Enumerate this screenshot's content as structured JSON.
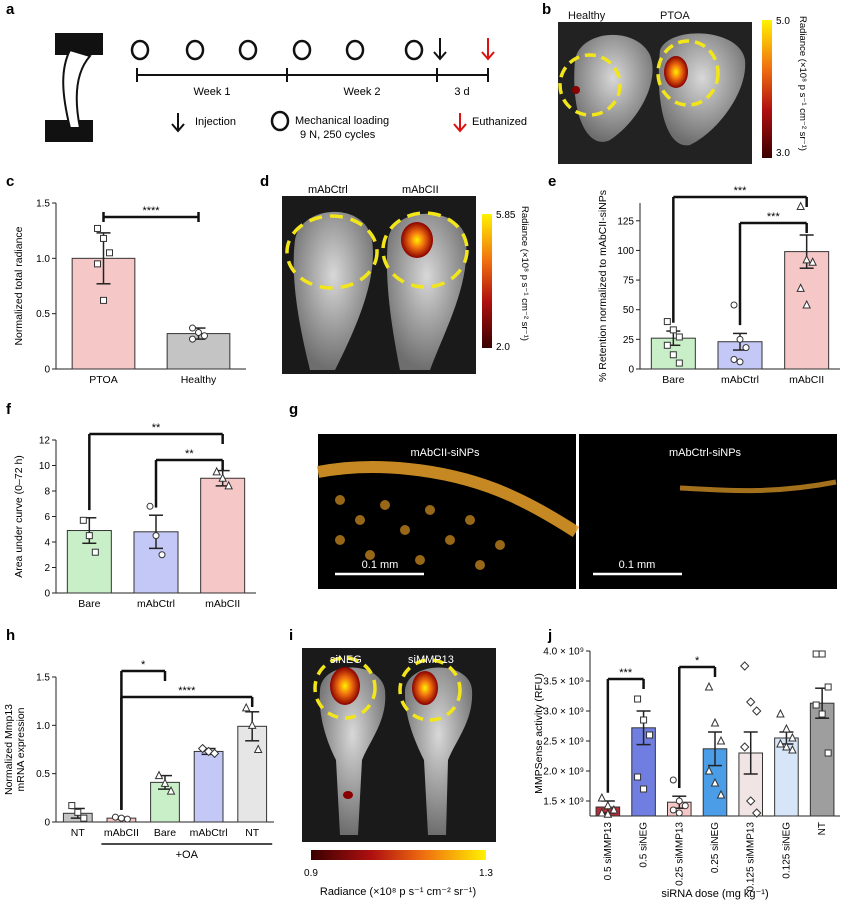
{
  "panels": {
    "a": {
      "label": "a",
      "week1": "Week 1",
      "week2": "Week 2",
      "days": "3 d",
      "legend_injection": "Injection",
      "legend_loading_1": "Mechanical loading",
      "legend_loading_2": "9 N, 250 cycles",
      "legend_euth": "Euthanized"
    },
    "b": {
      "label": "b",
      "left": "Healthy",
      "right": "PTOA",
      "cb_max": "5.0",
      "cb_min": "3.0",
      "cb_title": "Radiance (×10⁸ p s⁻¹ cm⁻² sr⁻¹)"
    },
    "d": {
      "label": "d",
      "left": "mAbCtrl",
      "right": "mAbCII",
      "cb_max": "5.85",
      "cb_min": "2.0",
      "cb_title": "Radiance (×10⁸ p s⁻¹ cm⁻² sr⁻¹)"
    },
    "g": {
      "label": "g",
      "left": "mAbCII-siNPs",
      "right": "mAbCtrl-siNPs",
      "scale": "0.1 mm"
    },
    "i": {
      "label": "i",
      "left": "siNEG",
      "right": "siMMP13",
      "cb_min": "0.9",
      "cb_max": "1.3",
      "cb_title": "Radiance (×10⁸ p s⁻¹ cm⁻² sr⁻¹)"
    },
    "h_group": "+OA"
  },
  "chart_data": [
    {
      "id": "c",
      "type": "bar",
      "label": "c",
      "categories": [
        "PTOA",
        "Healthy"
      ],
      "values": [
        1.0,
        0.32
      ],
      "errors": [
        0.23,
        0.05
      ],
      "colors": [
        "#f6c7c7",
        "#c4c4c4"
      ],
      "ylabel": "Normalized total radiance",
      "ylim": [
        0,
        1.5
      ],
      "yticks": [
        "0",
        "0.5",
        "1.0",
        "1.5"
      ],
      "points": [
        [
          1.27,
          1.18,
          1.05,
          0.95,
          0.62
        ],
        [
          0.37,
          0.33,
          0.3,
          0.27
        ]
      ],
      "sig": [
        {
          "from": 0,
          "to": 1,
          "text": "****"
        }
      ]
    },
    {
      "id": "e",
      "type": "bar",
      "label": "e",
      "categories": [
        "Bare",
        "mAbCtrl",
        "mAbCII"
      ],
      "values": [
        26,
        23,
        99
      ],
      "errors": [
        6,
        7,
        14
      ],
      "colors": [
        "#c9efc9",
        "#c4c8f6",
        "#f6c7c7"
      ],
      "ylabel": "% Retention normalized to mAbCII-siNPs",
      "ylim": [
        0,
        140
      ],
      "yticks": [
        "0",
        "25",
        "50",
        "75",
        "100",
        "125"
      ],
      "points": [
        [
          40,
          33,
          27,
          20,
          12,
          5
        ],
        [
          54,
          25,
          18,
          8,
          6
        ],
        [
          137,
          92,
          90,
          68,
          54
        ]
      ],
      "sig": [
        {
          "from": 0,
          "to": 2,
          "text": "***"
        },
        {
          "from": 1,
          "to": 2,
          "text": "***"
        }
      ]
    },
    {
      "id": "f",
      "type": "bar",
      "label": "f",
      "categories": [
        "Bare",
        "mAbCtrl",
        "mAbCII"
      ],
      "values": [
        4.9,
        4.8,
        9.0
      ],
      "errors": [
        1.0,
        1.3,
        0.6
      ],
      "colors": [
        "#c9efc9",
        "#c4c8f6",
        "#f6c7c7"
      ],
      "ylabel": "Area under curve (0–72 h)",
      "ylim": [
        0,
        12
      ],
      "yticks": [
        "0",
        "2",
        "4",
        "6",
        "8",
        "10",
        "12"
      ],
      "points": [
        [
          5.7,
          4.5,
          3.2
        ],
        [
          6.8,
          4.5,
          3.0
        ],
        [
          9.5,
          9.0,
          8.4
        ]
      ],
      "sig": [
        {
          "from": 0,
          "to": 2,
          "text": "**"
        },
        {
          "from": 1,
          "to": 2,
          "text": "**"
        }
      ]
    },
    {
      "id": "h",
      "type": "bar",
      "label": "h",
      "categories": [
        "NT",
        "mAbCII",
        "Bare",
        "mAbCtrl",
        "NT"
      ],
      "values": [
        0.09,
        0.04,
        0.41,
        0.73,
        0.99
      ],
      "errors": [
        0.05,
        0.01,
        0.07,
        0.03,
        0.15
      ],
      "colors": [
        "#c4c4c4",
        "#f6c7c7",
        "#c9efc9",
        "#c4c8f6",
        "#e6e6e6"
      ],
      "ylabel_1": "Normalized Mmp13",
      "ylabel_2": "mRNA expression",
      "ylim": [
        0,
        1.5
      ],
      "yticks": [
        "0",
        "0.5",
        "1.0",
        "1.5"
      ],
      "points": [
        [
          0.17,
          0.1,
          0.04
        ],
        [
          0.05,
          0.04,
          0.03
        ],
        [
          0.48,
          0.4,
          0.32
        ],
        [
          0.76,
          0.73,
          0.71
        ],
        [
          1.18,
          1.0,
          0.75
        ]
      ],
      "sig": [
        {
          "from": 1,
          "to": 2,
          "text": "*"
        },
        {
          "from": 1,
          "to": 4,
          "text": "****"
        }
      ]
    },
    {
      "id": "j",
      "type": "bar",
      "label": "j",
      "categories": [
        "0.5 siMMP13",
        "0.5 siNEG",
        "0.25 siMMP13",
        "0.25 siNEG",
        "0.125 siMMP13",
        "0.125 siNEG",
        "NT"
      ],
      "values": [
        1.4,
        2.72,
        1.48,
        2.37,
        2.3,
        2.55,
        3.13
      ],
      "errors": [
        0.1,
        0.28,
        0.1,
        0.28,
        0.35,
        0.1,
        0.25
      ],
      "colors": [
        "#b22d38",
        "#6f7ee0",
        "#f6c7c7",
        "#4a9de6",
        "#f0e4e4",
        "#d6e6f8",
        "#9e9e9e"
      ],
      "ylabel": "MMPSense activity (RFU)",
      "xlabel": "siRNA dose (mg kg⁻¹)",
      "ylim": [
        1.25,
        4.0
      ],
      "yticks": [
        "1.5 × 10⁹",
        "2.0 × 10⁹",
        "2.5 × 10⁹",
        "3.0 × 10⁹",
        "3.5 × 10⁹",
        "4.0 × 10⁹"
      ],
      "points": [
        [
          1.55,
          1.42,
          1.35,
          1.3,
          1.28
        ],
        [
          3.2,
          2.85,
          2.6,
          1.9,
          1.7
        ],
        [
          1.85,
          1.5,
          1.42,
          1.35,
          1.3
        ],
        [
          3.4,
          2.8,
          2.5,
          2.0,
          1.8,
          1.6
        ],
        [
          3.75,
          3.15,
          3.0,
          2.4,
          1.5,
          1.3
        ],
        [
          2.95,
          2.7,
          2.55,
          2.45,
          2.4,
          2.35
        ],
        [
          3.95,
          3.95,
          3.4,
          3.1,
          2.95,
          2.3
        ]
      ],
      "sig": [
        {
          "from": 0,
          "to": 1,
          "text": "***"
        },
        {
          "from": 2,
          "to": 3,
          "text": "*"
        }
      ]
    }
  ]
}
